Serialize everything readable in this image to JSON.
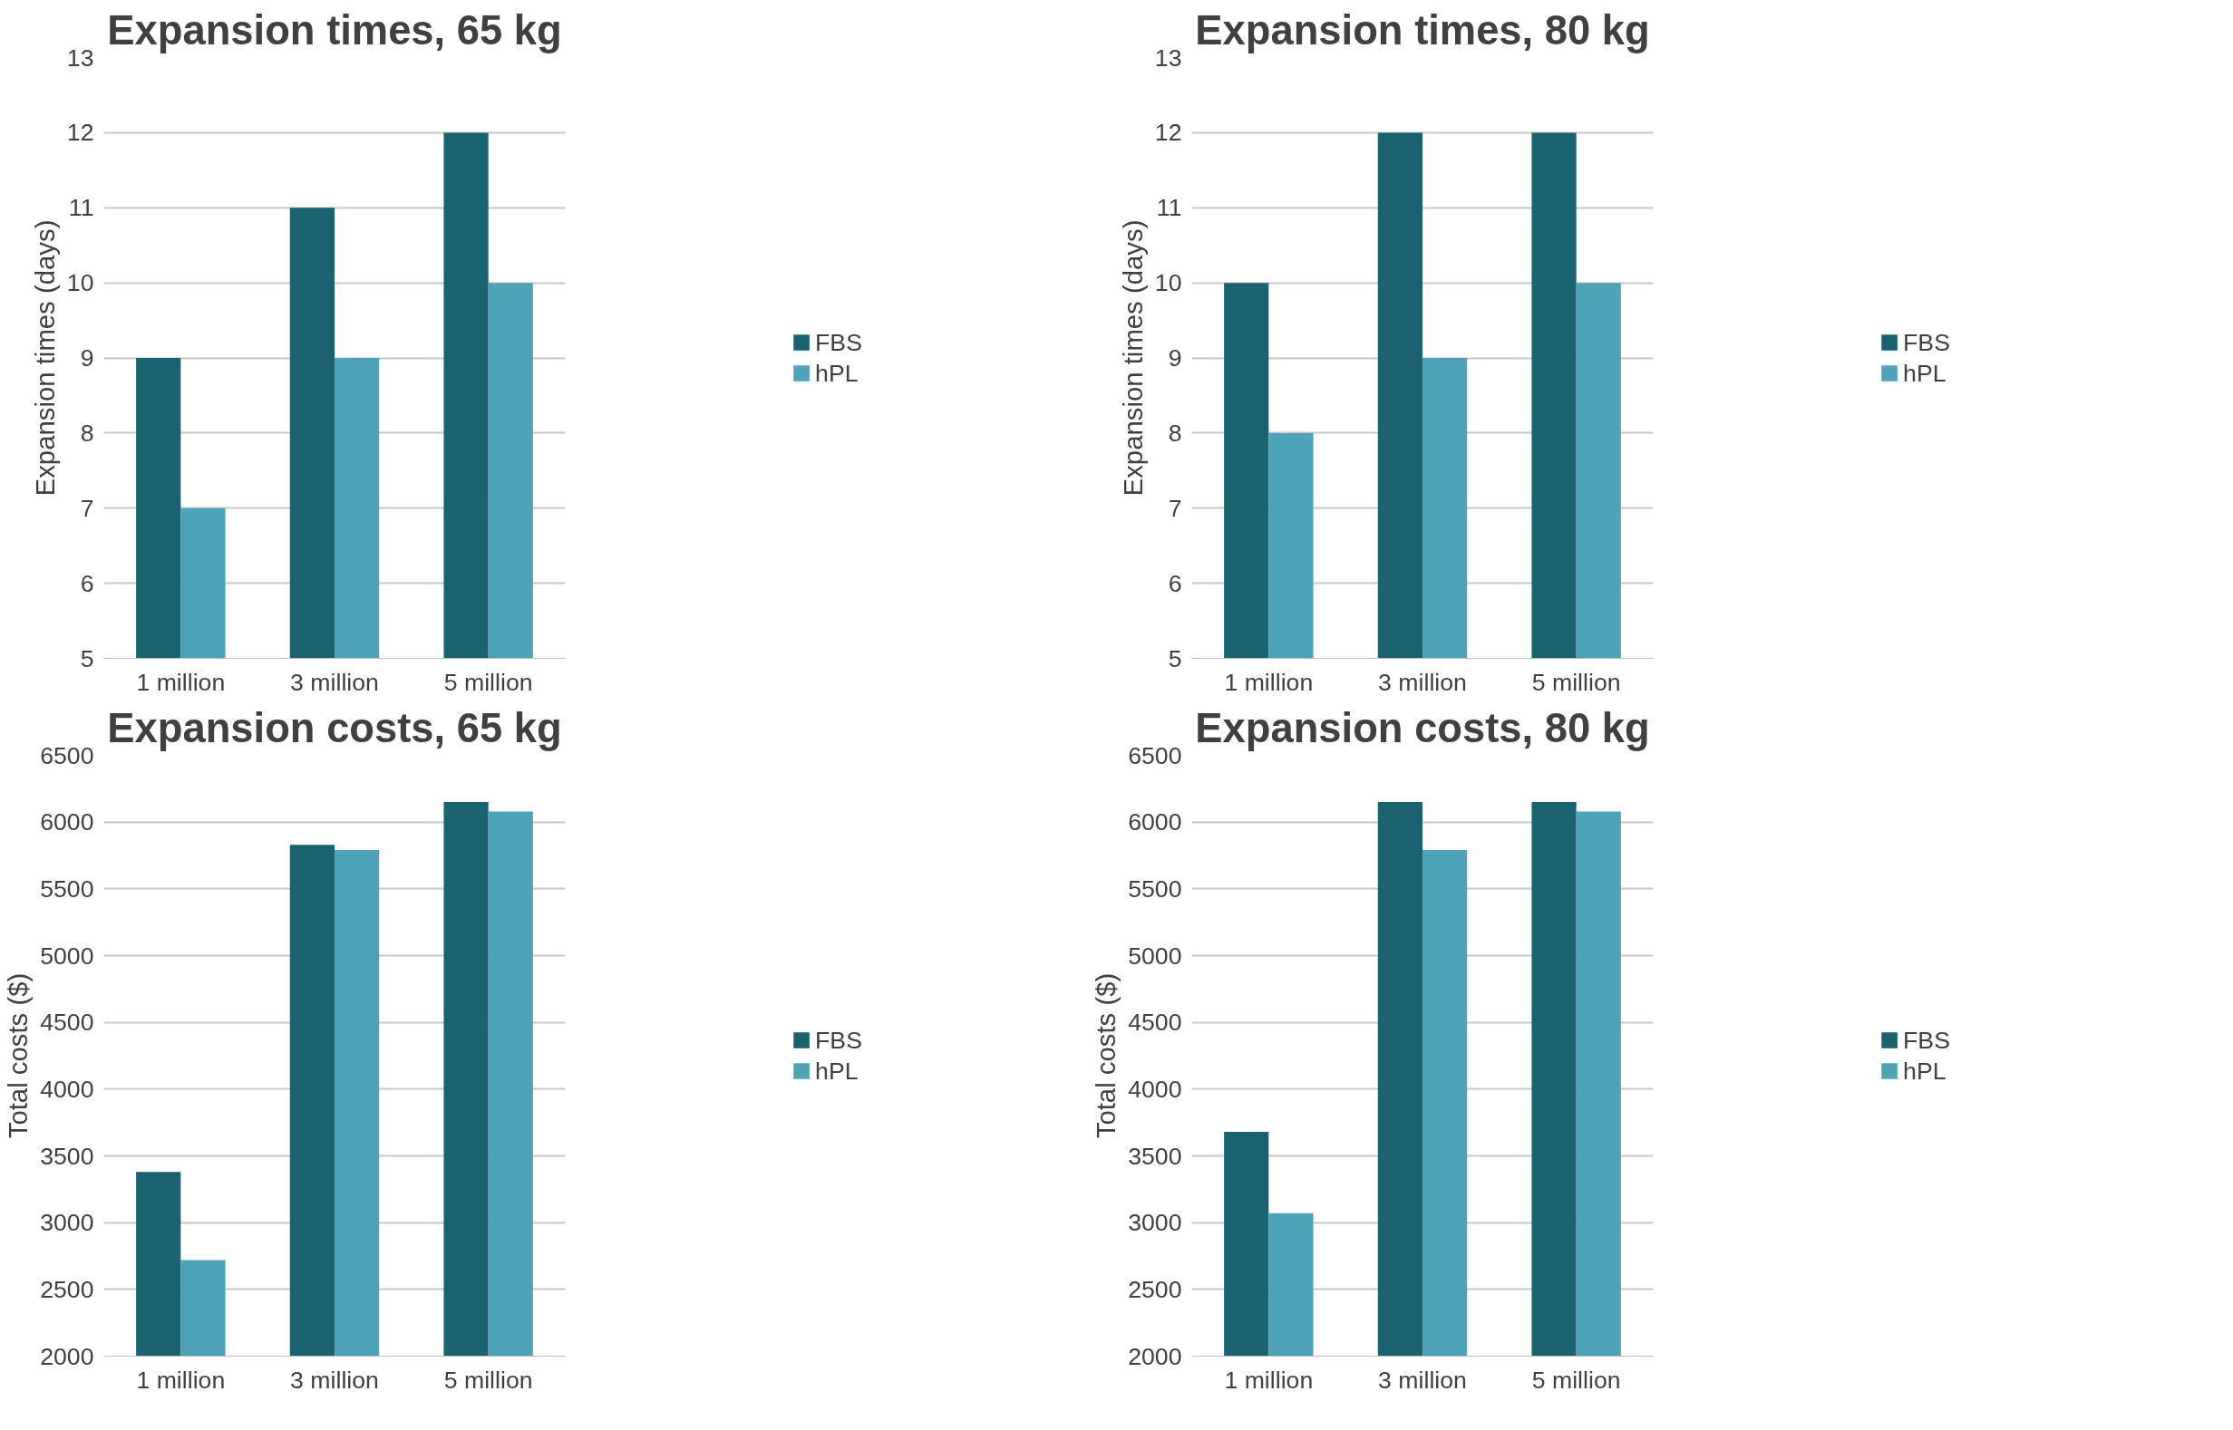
{
  "chart_data": [
    {
      "type": "bar",
      "title": "Expansion times, 65 kg",
      "ylabel": "Expansion times (days)",
      "categories": [
        "1 million",
        "3 million",
        "5 million"
      ],
      "series": [
        {
          "name": "FBS",
          "color": "#1b6170",
          "values": [
            9,
            11,
            12
          ]
        },
        {
          "name": "hPL",
          "color": "#4ea3b8",
          "values": [
            7,
            9,
            10
          ]
        }
      ],
      "ylim": [
        5,
        13
      ],
      "yticks": [
        5,
        6,
        7,
        8,
        9,
        10,
        11,
        12,
        13
      ],
      "grid": "y",
      "legend": "right"
    },
    {
      "type": "bar",
      "title": "Expansion times, 80 kg",
      "ylabel": "Expansion times (days)",
      "categories": [
        "1 million",
        "3 million",
        "5 million"
      ],
      "series": [
        {
          "name": "FBS",
          "color": "#1b6170",
          "values": [
            10,
            12,
            12
          ]
        },
        {
          "name": "hPL",
          "color": "#4ea3b8",
          "values": [
            8,
            9,
            10
          ]
        }
      ],
      "ylim": [
        5,
        13
      ],
      "yticks": [
        5,
        6,
        7,
        8,
        9,
        10,
        11,
        12,
        13
      ],
      "grid": "y",
      "legend": "right"
    },
    {
      "type": "bar",
      "title": "Expansion costs, 65 kg",
      "ylabel": "Total costs ($)",
      "categories": [
        "1 million",
        "3 million",
        "5 million"
      ],
      "series": [
        {
          "name": "FBS",
          "color": "#1b6170",
          "values": [
            3380,
            5830,
            6150
          ]
        },
        {
          "name": "hPL",
          "color": "#4ea3b8",
          "values": [
            2720,
            5790,
            6080
          ]
        }
      ],
      "ylim": [
        2000,
        6500
      ],
      "yticks": [
        2000,
        2500,
        3000,
        3500,
        4000,
        4500,
        5000,
        5500,
        6000,
        6500
      ],
      "grid": "y",
      "legend": "right"
    },
    {
      "type": "bar",
      "title": "Expansion costs, 80 kg",
      "ylabel": "Total costs ($)",
      "categories": [
        "1 million",
        "3 million",
        "5 million"
      ],
      "series": [
        {
          "name": "FBS",
          "color": "#1b6170",
          "values": [
            3680,
            6150,
            6150
          ]
        },
        {
          "name": "hPL",
          "color": "#4ea3b8",
          "values": [
            3070,
            5790,
            6080
          ]
        }
      ],
      "ylim": [
        2000,
        6500
      ],
      "yticks": [
        2000,
        2500,
        3000,
        3500,
        4000,
        4500,
        5000,
        5500,
        6000,
        6500
      ],
      "grid": "y",
      "legend": "right"
    }
  ]
}
